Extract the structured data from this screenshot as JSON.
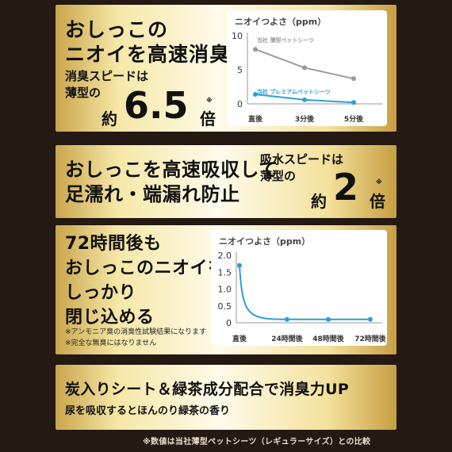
{
  "panel1": {
    "headline": [
      "おしっこの",
      "ニオイを高速消臭"
    ],
    "sub": [
      "消臭スピードは",
      "薄型の"
    ],
    "yaku": "約",
    "number": "6.5",
    "mark": "※",
    "bai": "倍"
  },
  "panel2": {
    "headline": [
      "おしっこを高速吸収して",
      "足濡れ・端漏れ防止"
    ],
    "sub": [
      "吸水スピードは",
      "薄型の"
    ],
    "yaku": "約",
    "number": "2",
    "mark": "※",
    "bai": "倍"
  },
  "panel3": {
    "headline": [
      "72時間後も",
      "おしっこのニオイを",
      "しっかり",
      "閉じ込める"
    ],
    "notes": [
      "※アンモニア臭の消臭性試験結果になります",
      "※完全な無臭にはなりません"
    ]
  },
  "panel4": {
    "headline": "炭入りシート＆緑茶成分配合で消臭力UP",
    "sub": "尿を吸収するとほんのり緑茶の香り"
  },
  "footer": "※数値は当社薄型ペットシーツ（レギュラーサイズ）との比較",
  "colors": {
    "gray_series": "#9a9a9a",
    "blue_series": "#2a9fd8"
  },
  "chart_data": [
    {
      "type": "line",
      "title": "ニオイつよさ（ppm）",
      "categories": [
        "直後",
        "3分後",
        "5分後"
      ],
      "ylim": [
        0,
        10
      ],
      "yticks": [
        0,
        5,
        10
      ],
      "series": [
        {
          "name": "当社 薄型ペットシーツ",
          "values": [
            8.0,
            5.3,
            3.7
          ]
        },
        {
          "name": "当社 プレミアムペットシーツ",
          "values": [
            1.4,
            0.6,
            0.2
          ]
        }
      ]
    },
    {
      "type": "line",
      "title": "ニオイつよさ（ppm）",
      "categories": [
        "直後",
        "24時間後",
        "48時間後",
        "72時間後"
      ],
      "ylim": [
        0,
        2.0
      ],
      "yticks": [
        "0",
        "0.5",
        "1.0",
        "1.5",
        "2.0"
      ],
      "series": [
        {
          "values": [
            1.7,
            0.1,
            0.1,
            0.1
          ]
        }
      ]
    }
  ]
}
